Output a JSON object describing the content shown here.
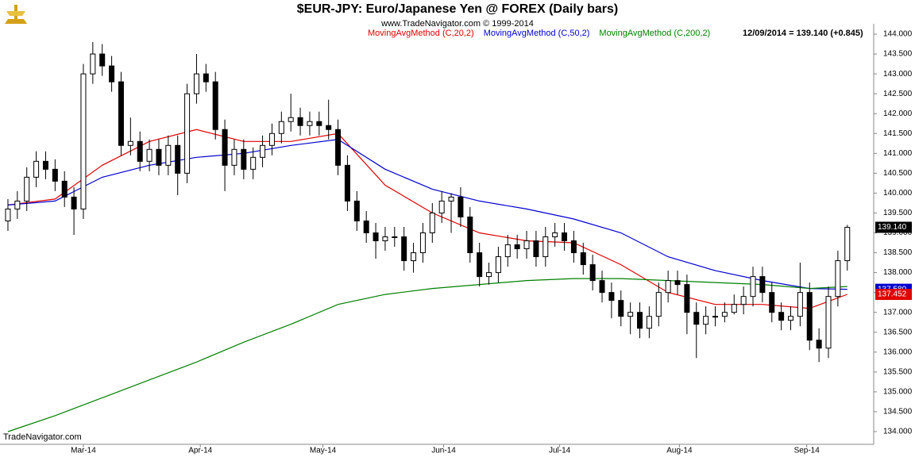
{
  "chart_data": {
    "type": "candlestick",
    "title": "$EUR-JPY:  Euro/Japanese Yen @ FOREX  (Daily bars)",
    "subtitle": "www.TradeNavigator.com © 1999-2014",
    "status": "12/09/2014 = 139.140 (+0.845)",
    "footer": "TradeNavigator.com",
    "up_color": "#ffffff",
    "down_color": "#000000",
    "xlim": [
      -0.84,
      91.8
    ],
    "xticks": [
      {
        "value": 8,
        "label": "Mar-14"
      },
      {
        "value": 20.4,
        "label": "Apr-14"
      },
      {
        "value": 33.4,
        "label": "May-14"
      },
      {
        "value": 46.2,
        "label": "Jun-14"
      },
      {
        "value": 58.5,
        "label": "Jul-14"
      },
      {
        "value": 71.2,
        "label": "Aug-14"
      },
      {
        "value": 84.7,
        "label": "Sep-14"
      }
    ],
    "ylim": [
      133.68,
      144.26
    ],
    "yticks": [
      {
        "value": 134,
        "label": "134.000"
      },
      {
        "value": 134.5,
        "label": "134.500"
      },
      {
        "value": 135,
        "label": "135.000"
      },
      {
        "value": 135.5,
        "label": "135.500"
      },
      {
        "value": 136,
        "label": "136.000"
      },
      {
        "value": 136.5,
        "label": "136.500"
      },
      {
        "value": 137,
        "label": "137.000"
      },
      {
        "value": 137.5,
        "label": "137.500"
      },
      {
        "value": 138,
        "label": "138.000"
      },
      {
        "value": 138.5,
        "label": "138.500"
      },
      {
        "value": 139,
        "label": "139.000"
      },
      {
        "value": 139.5,
        "label": "139.500"
      },
      {
        "value": 140,
        "label": "140.000"
      },
      {
        "value": 140.5,
        "label": "140.500"
      },
      {
        "value": 141,
        "label": "141.000"
      },
      {
        "value": 141.5,
        "label": "141.500"
      },
      {
        "value": 142,
        "label": "142.000"
      },
      {
        "value": 142.5,
        "label": "142.500"
      },
      {
        "value": 143,
        "label": "143.000"
      },
      {
        "value": 143.5,
        "label": "143.500"
      },
      {
        "value": 144,
        "label": "144.000"
      }
    ],
    "open": [
      139.3,
      139.6,
      139.8,
      140.4,
      140.8,
      140.6,
      140.3,
      139.9,
      139.6,
      143.0,
      143.5,
      143.2,
      142.8,
      141.2,
      141.3,
      140.8,
      141.1,
      140.7,
      141.2,
      140.5,
      142.5,
      143.0,
      142.8,
      141.6,
      140.7,
      141.1,
      140.6,
      140.9,
      141.2,
      141.5,
      141.8,
      141.9,
      141.7,
      141.8,
      141.7,
      141.6,
      140.7,
      139.8,
      139.3,
      139.0,
      138.8,
      138.9,
      138.9,
      138.3,
      138.5,
      139.0,
      139.5,
      139.8,
      139.9,
      139.4,
      138.5,
      137.9,
      138.0,
      138.4,
      138.7,
      138.6,
      138.8,
      138.4,
      138.9,
      139.0,
      138.8,
      138.5,
      138.2,
      137.8,
      137.5,
      137.3,
      136.9,
      137.0,
      136.6,
      136.9,
      137.5,
      137.8,
      137.7,
      137.0,
      136.7,
      136.9,
      136.9,
      137.0,
      137.2,
      137.4,
      137.9,
      137.5,
      137.0,
      136.8,
      136.9,
      137.5,
      136.3,
      136.1,
      137.4,
      138.3
    ],
    "high": [
      139.85,
      140.05,
      140.65,
      141.05,
      141.05,
      140.85,
      140.55,
      140.15,
      143.25,
      143.8,
      143.75,
      143.45,
      143.05,
      141.9,
      141.55,
      141.35,
      141.35,
      141.45,
      141.45,
      142.75,
      143.5,
      143.25,
      143.05,
      141.85,
      141.35,
      141.35,
      141.15,
      141.45,
      141.75,
      142.05,
      142.5,
      142.15,
      142.05,
      142.05,
      142.35,
      141.85,
      140.95,
      140.05,
      139.55,
      139.25,
      139.15,
      139.15,
      139.15,
      138.75,
      139.25,
      139.75,
      140.05,
      140.0,
      140.15,
      139.65,
      138.75,
      138.25,
      138.65,
      138.95,
      138.95,
      139.05,
      139.05,
      139.15,
      139.25,
      139.25,
      139.05,
      138.75,
      138.45,
      138.05,
      137.75,
      137.55,
      137.25,
      137.25,
      137.15,
      137.75,
      138.05,
      138.05,
      137.95,
      137.25,
      137.15,
      137.15,
      137.25,
      137.45,
      137.65,
      138.15,
      138.15,
      137.75,
      137.25,
      137.15,
      138.25,
      137.75,
      136.6,
      137.65,
      138.55,
      139.2
    ],
    "low": [
      139.05,
      139.35,
      139.55,
      140.15,
      140.35,
      140.05,
      139.65,
      138.95,
      139.35,
      142.75,
      142.95,
      142.55,
      140.95,
      140.95,
      140.55,
      140.55,
      140.45,
      140.45,
      139.95,
      140.25,
      142.25,
      142.55,
      141.35,
      140.05,
      140.45,
      140.35,
      140.35,
      140.65,
      140.95,
      141.25,
      141.55,
      141.45,
      141.45,
      141.45,
      141.35,
      140.45,
      139.55,
      139.05,
      138.75,
      138.35,
      138.55,
      138.65,
      138.05,
      138.0,
      138.25,
      138.75,
      139.25,
      139.0,
      139.15,
      138.25,
      137.65,
      137.7,
      137.75,
      138.15,
      138.35,
      138.35,
      138.15,
      138.15,
      138.65,
      138.55,
      138.25,
      137.95,
      137.55,
      137.25,
      136.85,
      136.65,
      136.45,
      136.35,
      136.35,
      136.65,
      137.25,
      137.45,
      136.45,
      135.85,
      136.45,
      136.65,
      136.75,
      136.95,
      136.95,
      137.15,
      137.25,
      136.75,
      136.55,
      136.55,
      136.65,
      136.05,
      135.75,
      135.85,
      137.15,
      138.05
    ],
    "close": [
      139.6,
      139.8,
      140.4,
      140.8,
      140.6,
      140.3,
      139.9,
      139.6,
      143.0,
      143.5,
      143.2,
      142.8,
      141.2,
      141.3,
      140.8,
      141.1,
      140.7,
      141.2,
      140.5,
      142.5,
      143.0,
      142.8,
      141.6,
      140.7,
      141.1,
      140.6,
      140.9,
      141.2,
      141.5,
      141.8,
      141.9,
      141.7,
      141.8,
      141.7,
      141.6,
      140.7,
      139.8,
      139.3,
      139.0,
      138.8,
      138.9,
      138.9,
      138.3,
      138.5,
      139.0,
      139.5,
      139.8,
      139.9,
      139.4,
      138.5,
      137.9,
      138.0,
      138.4,
      138.7,
      138.6,
      138.8,
      138.4,
      138.9,
      139.0,
      138.8,
      138.5,
      138.2,
      137.8,
      137.5,
      137.3,
      136.9,
      137.0,
      136.6,
      136.9,
      137.5,
      137.8,
      137.7,
      137.0,
      136.7,
      136.9,
      136.9,
      137.0,
      137.2,
      137.4,
      137.9,
      137.5,
      137.0,
      136.8,
      136.9,
      137.5,
      136.3,
      136.1,
      137.4,
      138.3,
      139.14
    ],
    "series": [
      {
        "name": "MovingAvgMethod (C,20,2)",
        "color": "#e00000",
        "x": [
          0,
          5,
          10,
          15,
          20,
          25,
          30,
          35,
          40,
          45,
          50,
          55,
          60,
          65,
          70,
          75,
          80,
          85,
          89
        ],
        "values": [
          139.7,
          139.85,
          140.7,
          141.3,
          141.6,
          141.3,
          141.3,
          141.5,
          140.2,
          139.5,
          139.0,
          138.8,
          138.75,
          138.2,
          137.5,
          137.2,
          137.2,
          137.1,
          137.452
        ]
      },
      {
        "name": "MovingAvgMethod (C,50,2)",
        "color": "#0000d0",
        "x": [
          0,
          5,
          10,
          15,
          20,
          25,
          30,
          35,
          40,
          45,
          50,
          55,
          60,
          65,
          70,
          75,
          80,
          85,
          89
        ],
        "values": [
          139.7,
          139.8,
          140.4,
          140.7,
          140.9,
          141.0,
          141.2,
          141.35,
          140.6,
          140.1,
          139.8,
          139.6,
          139.35,
          139.0,
          138.4,
          138.05,
          137.8,
          137.6,
          137.58
        ]
      },
      {
        "name": "MovingAvgMethod (C,200,2)",
        "color": "#008000",
        "x": [
          0,
          5,
          10,
          15,
          20,
          25,
          30,
          35,
          40,
          45,
          50,
          55,
          60,
          65,
          70,
          75,
          80,
          85,
          89
        ],
        "values": [
          134.0,
          134.4,
          134.85,
          135.3,
          135.75,
          136.25,
          136.7,
          137.2,
          137.45,
          137.6,
          137.7,
          137.8,
          137.85,
          137.85,
          137.8,
          137.75,
          137.7,
          137.6,
          137.65
        ]
      }
    ],
    "price_markers": [
      {
        "value": 139.14,
        "label": "139.140",
        "color": "#000000"
      },
      {
        "value": 137.58,
        "label": "137.580",
        "color": "#0000d0"
      },
      {
        "value": 137.452,
        "label": "137.452",
        "color": "#e00000"
      }
    ]
  }
}
